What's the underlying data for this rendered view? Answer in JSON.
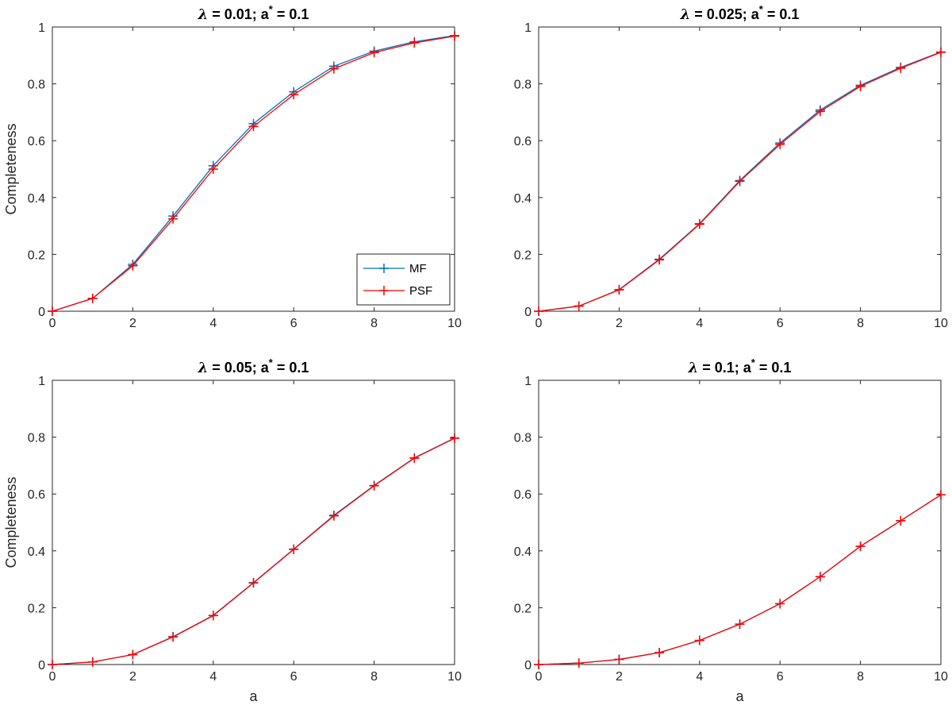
{
  "chart_data": [
    {
      "type": "line",
      "title": "λ = 0.01;  a* = 0.1",
      "title_parts": {
        "lambda": "λ",
        "lambda_value": " = 0.01;  a",
        "star": "*",
        "astar_value": " = 0.1"
      },
      "xlabel": "",
      "ylabel": "Completeness",
      "xlim": [
        0,
        10
      ],
      "ylim": [
        0,
        1
      ],
      "xticks": [
        "0",
        "2",
        "4",
        "6",
        "8",
        "10"
      ],
      "yticks": [
        "0",
        "0.2",
        "0.4",
        "0.6",
        "0.8",
        "1"
      ],
      "legend": {
        "position": "bottom-right",
        "entries": [
          "MF",
          "PSF"
        ]
      },
      "x": [
        0,
        1,
        2,
        3,
        4,
        5,
        6,
        7,
        8,
        9,
        10
      ],
      "series": [
        {
          "name": "MF",
          "color": "#0072BD",
          "values": [
            0,
            0.045,
            0.165,
            0.335,
            0.512,
            0.66,
            0.772,
            0.862,
            0.915,
            0.948,
            0.97
          ]
        },
        {
          "name": "PSF",
          "color": "#FF0000",
          "values": [
            0,
            0.045,
            0.16,
            0.325,
            0.5,
            0.65,
            0.762,
            0.853,
            0.91,
            0.944,
            0.968
          ]
        }
      ]
    },
    {
      "type": "line",
      "title": "λ = 0.025;  a* = 0.1",
      "title_parts": {
        "lambda": "λ",
        "lambda_value": " = 0.025;  a",
        "star": "*",
        "astar_value": " = 0.1"
      },
      "xlabel": "",
      "ylabel": "",
      "xlim": [
        0,
        10
      ],
      "ylim": [
        0,
        1
      ],
      "xticks": [
        "0",
        "2",
        "4",
        "6",
        "8",
        "10"
      ],
      "yticks": [
        "0",
        "0.2",
        "0.4",
        "0.6",
        "0.8",
        "1"
      ],
      "x": [
        0,
        1,
        2,
        3,
        4,
        5,
        6,
        7,
        8,
        9,
        10
      ],
      "series": [
        {
          "name": "MF",
          "color": "#0072BD",
          "values": [
            0,
            0.018,
            0.076,
            0.183,
            0.308,
            0.46,
            0.592,
            0.708,
            0.795,
            0.858,
            0.912
          ]
        },
        {
          "name": "PSF",
          "color": "#FF0000",
          "values": [
            0,
            0.018,
            0.075,
            0.181,
            0.306,
            0.457,
            0.587,
            0.703,
            0.791,
            0.855,
            0.911
          ]
        }
      ]
    },
    {
      "type": "line",
      "title": "λ = 0.05;  a* = 0.1",
      "title_parts": {
        "lambda": "λ",
        "lambda_value": " = 0.05;  a",
        "star": "*",
        "astar_value": " = 0.1"
      },
      "xlabel": "a",
      "ylabel": "Completeness",
      "xlim": [
        0,
        10
      ],
      "ylim": [
        0,
        1
      ],
      "xticks": [
        "0",
        "2",
        "4",
        "6",
        "8",
        "10"
      ],
      "yticks": [
        "0",
        "0.2",
        "0.4",
        "0.6",
        "0.8",
        "1"
      ],
      "x": [
        0,
        1,
        2,
        3,
        4,
        5,
        6,
        7,
        8,
        9,
        10
      ],
      "series": [
        {
          "name": "MF",
          "color": "#0072BD",
          "values": [
            0,
            0.009,
            0.035,
            0.098,
            0.173,
            0.288,
            0.406,
            0.525,
            0.63,
            0.727,
            0.797
          ]
        },
        {
          "name": "PSF",
          "color": "#FF0000",
          "values": [
            0,
            0.009,
            0.035,
            0.097,
            0.172,
            0.287,
            0.405,
            0.523,
            0.629,
            0.726,
            0.796
          ]
        }
      ]
    },
    {
      "type": "line",
      "title": "λ = 0.1;  a* = 0.1",
      "title_parts": {
        "lambda": "λ",
        "lambda_value": " = 0.1;  a",
        "star": "*",
        "astar_value": " = 0.1"
      },
      "xlabel": "a",
      "ylabel": "",
      "xlim": [
        0,
        10
      ],
      "ylim": [
        0,
        1
      ],
      "xticks": [
        "0",
        "2",
        "4",
        "6",
        "8",
        "10"
      ],
      "yticks": [
        "0",
        "0.2",
        "0.4",
        "0.6",
        "0.8",
        "1"
      ],
      "x": [
        0,
        1,
        2,
        3,
        4,
        5,
        6,
        7,
        8,
        9,
        10
      ],
      "series": [
        {
          "name": "MF",
          "color": "#0072BD",
          "values": [
            0,
            0.005,
            0.018,
            0.042,
            0.085,
            0.142,
            0.214,
            0.309,
            0.416,
            0.506,
            0.597
          ]
        },
        {
          "name": "PSF",
          "color": "#FF0000",
          "values": [
            0,
            0.005,
            0.018,
            0.042,
            0.085,
            0.142,
            0.214,
            0.309,
            0.416,
            0.506,
            0.597
          ]
        }
      ]
    }
  ]
}
